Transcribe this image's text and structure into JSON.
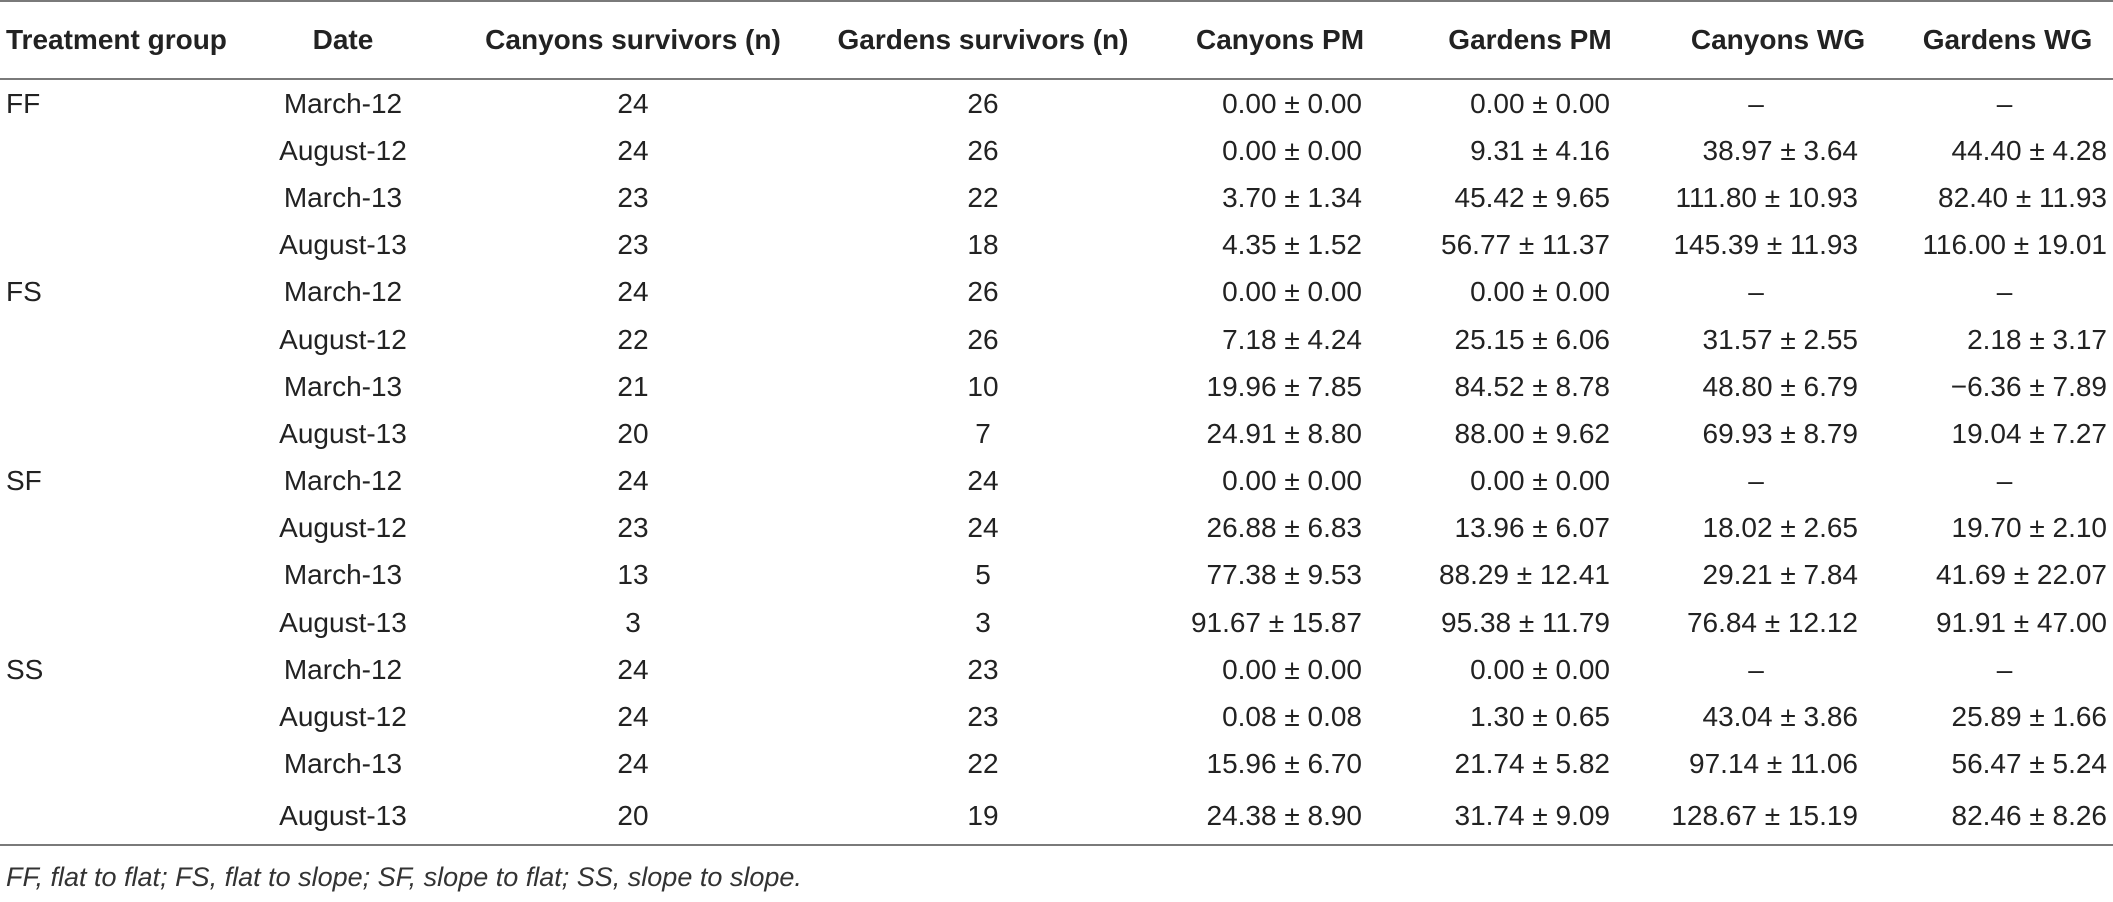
{
  "table": {
    "headers": [
      "Treatment group",
      "Date",
      "Canyons survivors (n)",
      "Gardens survivors (n)",
      "Canyons PM",
      "Gardens PM",
      "Canyons WG",
      "Gardens WG"
    ],
    "rows": [
      [
        "FF",
        "March-12",
        "24",
        "26",
        "0.00 ± 0.00",
        "0.00 ± 0.00",
        "–",
        "–"
      ],
      [
        "",
        "August-12",
        "24",
        "26",
        "0.00 ± 0.00",
        "9.31 ± 4.16",
        "38.97 ± 3.64",
        "44.40 ± 4.28"
      ],
      [
        "",
        "March-13",
        "23",
        "22",
        "3.70 ± 1.34",
        "45.42 ± 9.65",
        "111.80 ± 10.93",
        "82.40 ± 11.93"
      ],
      [
        "",
        "August-13",
        "23",
        "18",
        "4.35 ± 1.52",
        "56.77 ± 11.37",
        "145.39 ± 11.93",
        "116.00 ± 19.01"
      ],
      [
        "FS",
        "March-12",
        "24",
        "26",
        "0.00 ± 0.00",
        "0.00 ± 0.00",
        "–",
        "–"
      ],
      [
        "",
        "August-12",
        "22",
        "26",
        "7.18 ± 4.24",
        "25.15 ± 6.06",
        "31.57 ± 2.55",
        "2.18 ± 3.17"
      ],
      [
        "",
        "March-13",
        "21",
        "10",
        "19.96 ± 7.85",
        "84.52 ± 8.78",
        "48.80 ± 6.79",
        "−6.36 ± 7.89"
      ],
      [
        "",
        "August-13",
        "20",
        "7",
        "24.91 ± 8.80",
        "88.00 ± 9.62",
        "69.93 ± 8.79",
        "19.04 ± 7.27"
      ],
      [
        "SF",
        "March-12",
        "24",
        "24",
        "0.00 ± 0.00",
        "0.00 ± 0.00",
        "–",
        "–"
      ],
      [
        "",
        "August-12",
        "23",
        "24",
        "26.88 ± 6.83",
        "13.96 ± 6.07",
        "18.02 ± 2.65",
        "19.70 ± 2.10"
      ],
      [
        "",
        "March-13",
        "13",
        "5",
        "77.38 ± 9.53",
        "88.29 ± 12.41",
        "29.21 ± 7.84",
        "41.69 ± 22.07"
      ],
      [
        "",
        "August-13",
        "3",
        "3",
        "91.67 ± 15.87",
        "95.38 ± 11.79",
        "76.84 ± 12.12",
        "91.91 ± 47.00"
      ],
      [
        "SS",
        "March-12",
        "24",
        "23",
        "0.00 ± 0.00",
        "0.00 ± 0.00",
        "–",
        "–"
      ],
      [
        "",
        "August-12",
        "24",
        "23",
        "0.08 ± 0.08",
        "1.30 ± 0.65",
        "43.04 ± 3.86",
        "25.89 ± 1.66"
      ],
      [
        "",
        "March-13",
        "24",
        "22",
        "15.96 ± 6.70",
        "21.74 ± 5.82",
        "97.14 ± 11.06",
        "56.47 ± 5.24"
      ],
      [
        "",
        "August-13",
        "20",
        "19",
        "24.38 ± 8.90",
        "31.74 ± 9.09",
        "128.67 ± 15.19",
        "82.46 ± 8.26"
      ]
    ]
  },
  "footnote": "FF, flat to flat; FS, flat to slope; SF, slope to flat; SS, slope to slope.",
  "colors": {
    "text": "#222222",
    "rule": "#7a7a7a",
    "background": "#ffffff"
  }
}
